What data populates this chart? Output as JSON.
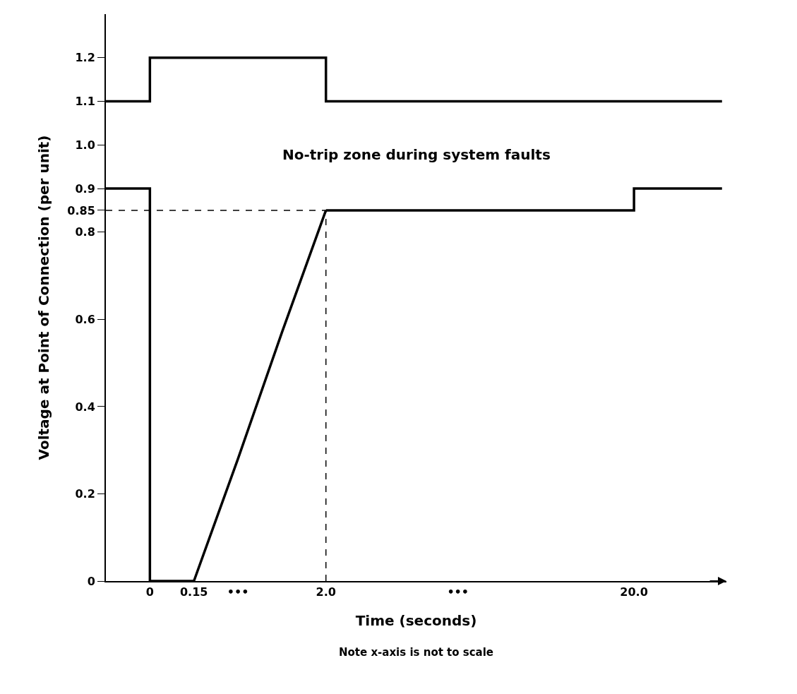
{
  "chart_data": {
    "type": "line",
    "xlabel": "Time (seconds)",
    "ylabel": "Voltage at Point of Connection (per unit)",
    "categories": [
      null,
      "0",
      "0.15",
      "•••",
      null,
      "2.0",
      null,
      null,
      "•••",
      null,
      null,
      null,
      "20.0",
      null,
      null
    ],
    "series": [
      {
        "type": "step",
        "color": "#000000",
        "values": [
          1.1,
          1.2,
          1.2,
          1.2,
          1.2,
          1.1,
          1.1,
          1.1,
          1.1,
          1.1,
          1.1,
          1.1,
          1.1,
          1.1,
          1.1
        ]
      },
      {
        "type": "step",
        "color": "#000000",
        "values": [
          0.9,
          0,
          0,
          null,
          null,
          null,
          null,
          null,
          null,
          null,
          null,
          null,
          null,
          null,
          null
        ]
      },
      {
        "color": "#000000",
        "values": [
          null,
          null,
          0,
          0.28,
          0.57,
          0.85,
          null,
          null,
          null,
          null,
          null,
          null,
          null,
          null,
          null
        ]
      },
      {
        "type": "step",
        "color": "#000000",
        "values": [
          null,
          null,
          null,
          null,
          null,
          0.85,
          0.85,
          0.85,
          0.85,
          0.85,
          0.85,
          0.85,
          0.9,
          0.9,
          0.9
        ]
      }
    ],
    "ylim": [
      0,
      1.3
    ],
    "yticks": [
      0,
      0.2,
      0.4,
      0.6,
      0.8,
      0.85,
      0.9,
      {
        "value": 1.0,
        "label": "1.0"
      },
      1.1,
      1.2
    ],
    "ref_lines": [
      {
        "axis": "y",
        "value": 0.85,
        "line_style": "dashed",
        "color": "#000000"
      },
      {
        "axis": "x",
        "value": "2.0",
        "line_style": "dashed",
        "color": "#000000"
      }
    ],
    "annotations": [
      "No-trip zone during system faults",
      "Note x-axis is not to scale"
    ],
    "marker": "none",
    "line_style": "solid"
  }
}
